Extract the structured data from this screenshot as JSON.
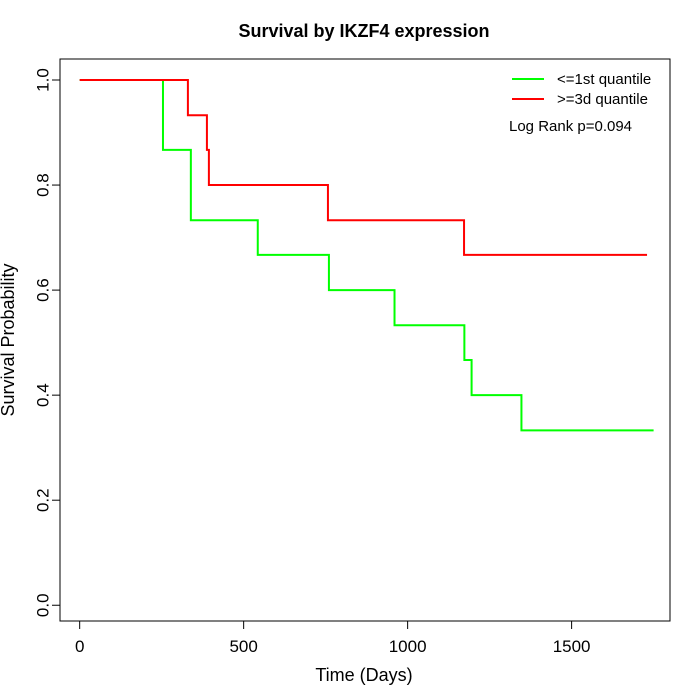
{
  "chart_data": {
    "type": "line",
    "step": true,
    "title": "Survival by IKZF4 expression",
    "xlabel": "Time (Days)",
    "ylabel": "Survival Probability",
    "xlim": [
      -60,
      1800
    ],
    "ylim": [
      -0.03,
      1.04
    ],
    "xticks": [
      0,
      500,
      1000,
      1500
    ],
    "xtick_labels": [
      "0",
      "500",
      "1000",
      "1500"
    ],
    "yticks": [
      0.0,
      0.2,
      0.4,
      0.6,
      0.8,
      1.0
    ],
    "ytick_labels": [
      "0.0",
      "0.2",
      "0.4",
      "0.6",
      "0.8",
      "1.0"
    ],
    "legend_position": "top-right",
    "annotation": "Log Rank p=0.094",
    "series": [
      {
        "name": "<=1st quantile",
        "color": "#00ff00",
        "x": [
          0,
          254,
          254,
          339,
          543,
          760,
          960,
          1173,
          1195,
          1347,
          1750
        ],
        "y": [
          1.0,
          0.933,
          0.867,
          0.733,
          0.667,
          0.6,
          0.533,
          0.467,
          0.4,
          0.333,
          0.333
        ]
      },
      {
        "name": ">=3d quantile",
        "color": "#ff0000",
        "x": [
          0,
          330,
          388,
          394,
          757,
          1172,
          1730
        ],
        "y": [
          1.0,
          0.933,
          0.867,
          0.8,
          0.733,
          0.667,
          0.667
        ]
      }
    ]
  }
}
